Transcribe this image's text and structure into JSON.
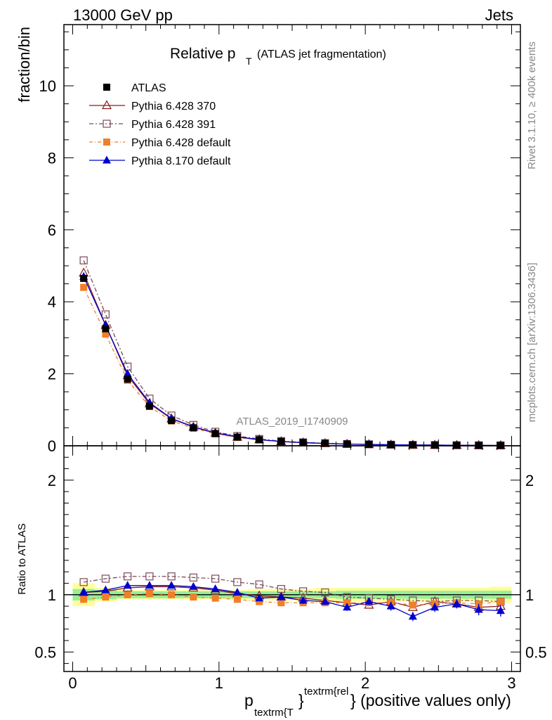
{
  "header": {
    "left": "13000 GeV pp",
    "right": "Jets"
  },
  "title": {
    "main": "Relative p",
    "sub": "T",
    "suffix": "(ATLAS jet fragmentation)"
  },
  "side_labels": {
    "rivet": "Rivet 3.1.10, ≥ 400k events",
    "mcplots": "mcplots.cern.ch [arXiv:1306.3436]"
  },
  "watermark": "ATLAS_2019_I1740909",
  "chart_data": {
    "type": "line",
    "x": [
      0.075,
      0.225,
      0.375,
      0.525,
      0.675,
      0.825,
      0.975,
      1.125,
      1.275,
      1.425,
      1.575,
      1.725,
      1.875,
      2.025,
      2.175,
      2.325,
      2.475,
      2.625,
      2.775,
      2.925
    ],
    "ylabel": "fraction/bin",
    "ratio_ylabel": "Ratio to ATLAS",
    "xlabel": {
      "p": "p",
      "sub": "textrm{T",
      "close": "}",
      "sup": "textrm{rel",
      "tail": "} (positive values only)"
    },
    "xlim": [
      -0.06,
      3.06
    ],
    "ylim": [
      0,
      11.7
    ],
    "ratio_ylim": [
      0.33,
      2.3
    ],
    "x_ticks": [
      0,
      1,
      2,
      3
    ],
    "y_ticks": [
      0,
      2,
      4,
      6,
      8,
      10
    ],
    "ratio_ticks": [
      0.5,
      1,
      2
    ],
    "data": {
      "name": "ATLAS",
      "values": [
        4.65,
        3.25,
        1.85,
        1.1,
        0.7,
        0.5,
        0.34,
        0.24,
        0.17,
        0.12,
        0.09,
        0.07,
        0.05,
        0.04,
        0.03,
        0.025,
        0.02,
        0.015,
        0.012,
        0.01
      ]
    },
    "series": [
      {
        "name": "Pythia 6.428 370",
        "color": "#8b1a1a",
        "dash": "",
        "marker": "triangle-open",
        "values": [
          4.8,
          3.35,
          1.95,
          1.17,
          0.75,
          0.52,
          0.35,
          0.24,
          0.17,
          0.12,
          0.085,
          0.064,
          0.046,
          0.036,
          0.027,
          0.022,
          0.018,
          0.014,
          0.011,
          0.009
        ],
        "ratio": [
          1.02,
          1.03,
          1.06,
          1.07,
          1.07,
          1.06,
          1.04,
          1.01,
          0.99,
          0.98,
          0.97,
          0.95,
          0.93,
          0.91,
          0.94,
          0.89,
          0.94,
          0.92,
          0.89,
          0.9
        ]
      },
      {
        "name": "Pythia 6.428 391",
        "color": "#7a4a5a",
        "dash": "6,3,2,3",
        "marker": "square-open",
        "values": [
          5.15,
          3.65,
          2.2,
          1.31,
          0.84,
          0.58,
          0.39,
          0.27,
          0.19,
          0.13,
          0.095,
          0.072,
          0.05,
          0.04,
          0.03,
          0.024,
          0.02,
          0.015,
          0.012,
          0.01
        ],
        "ratio": [
          1.11,
          1.14,
          1.16,
          1.16,
          1.16,
          1.15,
          1.14,
          1.11,
          1.09,
          1.05,
          1.03,
          1.02,
          0.98,
          0.97,
          0.96,
          0.95,
          0.94,
          0.95,
          0.95,
          0.94
        ]
      },
      {
        "name": "Pythia 6.428 default",
        "color": "#f07f2a",
        "dash": "5,3,1,3",
        "marker": "square-filled",
        "values": [
          4.4,
          3.1,
          1.82,
          1.09,
          0.69,
          0.49,
          0.33,
          0.23,
          0.16,
          0.11,
          0.083,
          0.064,
          0.046,
          0.036,
          0.027,
          0.022,
          0.018,
          0.014,
          0.011,
          0.009
        ],
        "ratio": [
          0.96,
          0.98,
          1.0,
          1.01,
          1.0,
          0.98,
          0.97,
          0.96,
          0.94,
          0.93,
          0.93,
          0.93,
          0.93,
          0.93,
          0.93,
          0.91,
          0.92,
          0.93,
          0.92,
          0.94
        ]
      },
      {
        "name": "Pythia 8.170 default",
        "color": "#0000cc",
        "dash": "",
        "marker": "triangle-filled",
        "values": [
          4.7,
          3.35,
          2.0,
          1.2,
          0.76,
          0.53,
          0.36,
          0.25,
          0.17,
          0.12,
          0.087,
          0.066,
          0.046,
          0.037,
          0.028,
          0.021,
          0.018,
          0.014,
          0.011,
          0.009
        ],
        "ratio": [
          1.02,
          1.04,
          1.08,
          1.08,
          1.08,
          1.07,
          1.05,
          1.02,
          0.97,
          0.98,
          0.95,
          0.94,
          0.89,
          0.94,
          0.9,
          0.81,
          0.89,
          0.92,
          0.87,
          0.86
        ],
        "ratio_err": [
          0.02,
          0.02,
          0.02,
          0.02,
          0.02,
          0.02,
          0.02,
          0.02,
          0.02,
          0.03,
          0.03,
          0.03,
          0.03,
          0.03,
          0.04,
          0.04,
          0.04,
          0.04,
          0.05,
          0.05
        ]
      }
    ],
    "ratio_band_green": [
      0.05,
      0.04,
      0.03,
      0.03,
      0.03,
      0.03,
      0.03,
      0.03,
      0.03,
      0.03,
      0.03,
      0.03,
      0.035,
      0.035,
      0.035,
      0.035,
      0.035,
      0.035,
      0.035,
      0.035
    ],
    "ratio_band_yellow": [
      0.1,
      0.06,
      0.04,
      0.04,
      0.04,
      0.04,
      0.04,
      0.04,
      0.05,
      0.05,
      0.05,
      0.06,
      0.06,
      0.06,
      0.06,
      0.06,
      0.06,
      0.06,
      0.06,
      0.07
    ],
    "legend": {
      "placement": "top-left"
    }
  }
}
